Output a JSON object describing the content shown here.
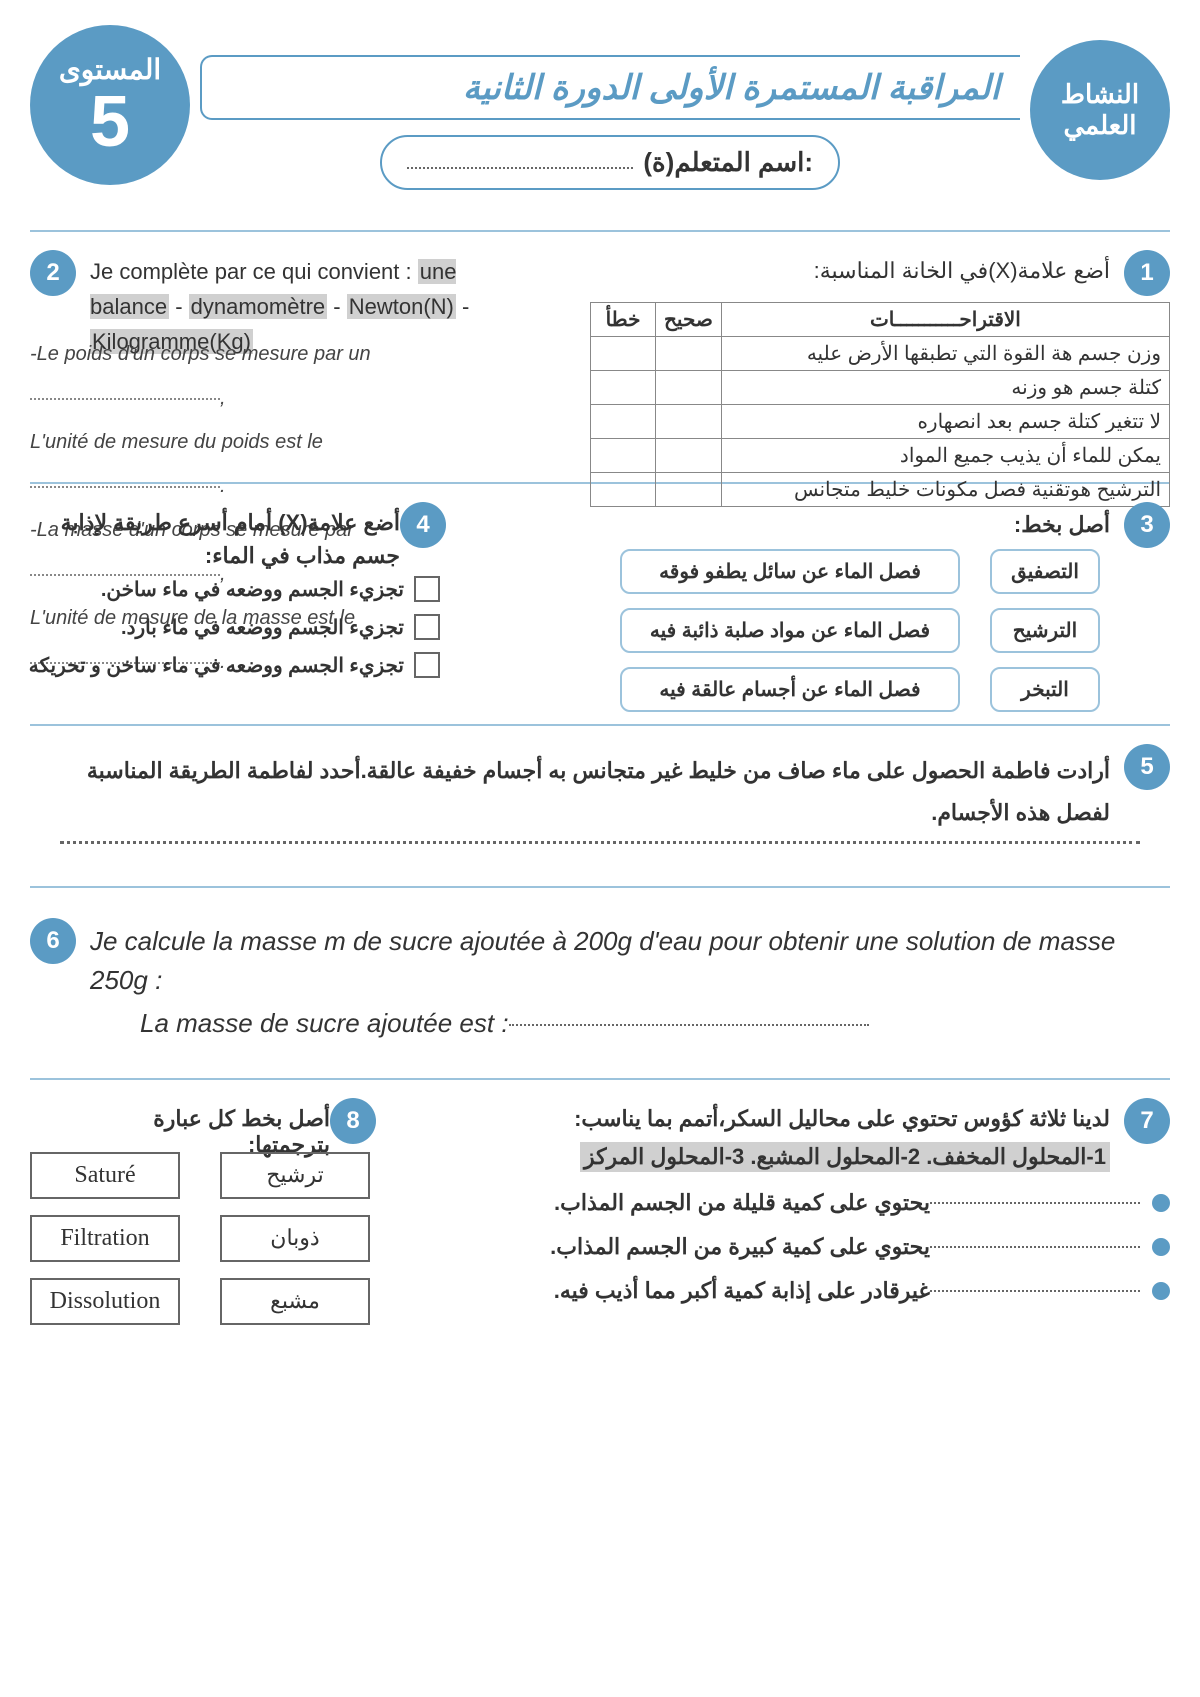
{
  "colors": {
    "primary": "#5b9bc4",
    "border_light": "#9cc3dc",
    "highlight": "#d0d0d0",
    "text": "#333333"
  },
  "header": {
    "level_label": "المستوى",
    "level_num": "5",
    "subject": "النشاط العلمي",
    "title": "المراقبة المستمرة الأولى الدورة الثانية",
    "name_label": "اسم المتعلم(ة):"
  },
  "q1": {
    "num": "1",
    "prompt": "أضع علامة(X)في الخانة المناسبة:",
    "col_suggest": "الاقتراحـــــــــــات",
    "col_correct": "صحيح",
    "col_wrong": "خطأ",
    "rows": [
      "وزن جسم هة القوة التي تطبقها الأرض عليه",
      "كتلة جسم هو وزنه",
      "لا تتغير كتلة جسم بعد انصهاره",
      "يمكن للماء أن يذيب جميع المواد",
      "الترشيح هوتقنية فصل مكونات خليط متجانس"
    ]
  },
  "q2": {
    "num": "2",
    "prompt": "Je complète par ce qui convient :",
    "word1": "une balance",
    "word2": "dynamomètre",
    "word3": "Newton(N)",
    "word4": "Kilogramme(Kg)",
    "l1": "-Le poids d'un corps se mesure par un",
    "l2": "L'unité de mesure du poids est le",
    "l3": "-La masse d'un corps se mesure par",
    "l4": "L'unité de mesure de la masse est le"
  },
  "q3": {
    "num": "3",
    "prompt": "أصل بخط:",
    "left": [
      "التصفيق",
      "الترشيح",
      "التبخر"
    ],
    "right": [
      "فصل الماء عن سائل يطفو فوقه",
      "فصل الماء عن مواد صلبة ذائبة فيه",
      "فصل الماء عن أجسام عالقة فيه"
    ]
  },
  "q4": {
    "num": "4",
    "prompt": "أضع علامة(X) أمام أسرع طريقة لإذابة جسم مذاب في الماء:",
    "opts": [
      "تجزيء الجسم ووضعه في ماء ساخن.",
      "تجزيء الجسم ووضعه في ماء بارد.",
      "تجزيء الجسم ووضعه في ماء ساخن و تحريكه"
    ]
  },
  "q5": {
    "num": "5",
    "text": "أرادت فاطمة الحصول على ماء صاف من خليط غير متجانس به أجسام خفيفة عالقة.أحدد لفاطمة الطريقة المناسبة لفصل هذه الأجسام."
  },
  "q6": {
    "num": "6",
    "text": "Je calcule la masse m de sucre ajoutée à 200g d'eau pour obtenir une solution de masse 250g :",
    "answer_label": "La masse de sucre ajoutée est :"
  },
  "q7": {
    "num": "7",
    "prompt": "لدينا ثلاثة كؤوس تحتوي على محاليل السكر،أتمم بما يناسب:",
    "sols": "1-المحلول المخفف.   2-المحلول المشبع.   3-المحلول المركز",
    "items": [
      "يحتوي على كمية قليلة من الجسم المذاب.",
      "يحتوي على كمية كبيرة من الجسم المذاب.",
      "غيرقادر على إذابة كمية أكبر مما أذيب فيه."
    ]
  },
  "q8": {
    "num": "8",
    "prompt": "أصل بخط كل عبارة بترجمتها:",
    "pairs": [
      {
        "fr": "Saturé",
        "ar": "ترشيح"
      },
      {
        "fr": "Filtration",
        "ar": "ذوبان"
      },
      {
        "fr": "Dissolution",
        "ar": "مشبع"
      }
    ]
  }
}
